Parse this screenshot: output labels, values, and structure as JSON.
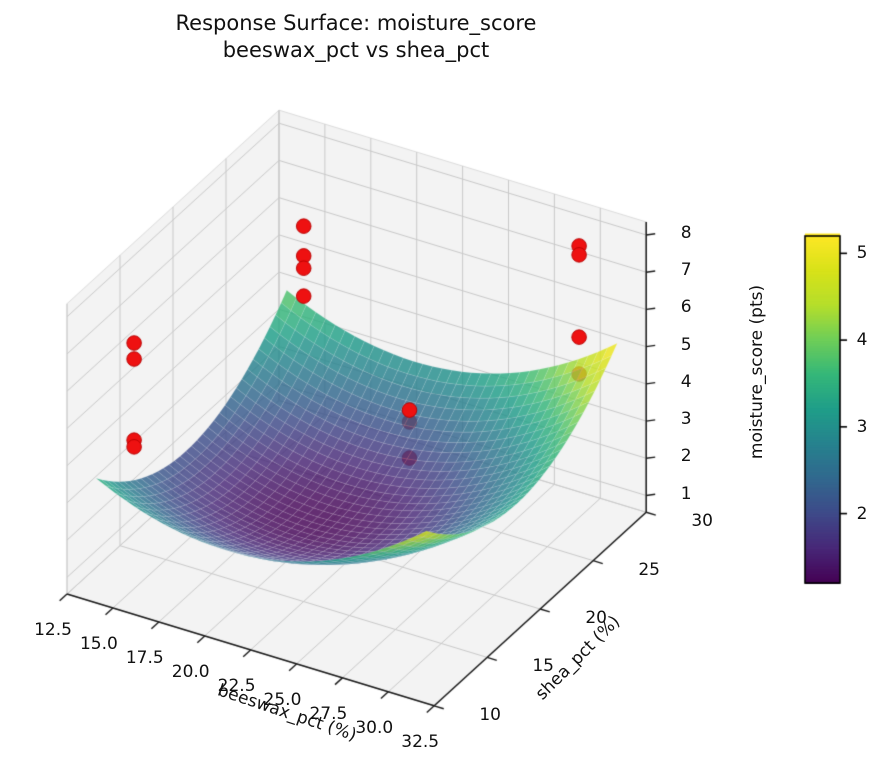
{
  "chart_data": {
    "type": "surface3d",
    "title": {
      "line1": "Response Surface: moisture_score",
      "line2": "beeswax_pct vs shea_pct"
    },
    "x": {
      "label": "beeswax_pct (%)",
      "lim": [
        12.5,
        32.5
      ],
      "ticks": [
        {
          "value": 12.5,
          "label": "12.5"
        },
        {
          "value": 15.0,
          "label": "15.0"
        },
        {
          "value": 17.5,
          "label": "17.5"
        },
        {
          "value": 20.0,
          "label": "20.0"
        },
        {
          "value": 22.5,
          "label": "22.5"
        },
        {
          "value": 25.0,
          "label": "25.0"
        },
        {
          "value": 27.5,
          "label": "27.5"
        },
        {
          "value": 30.0,
          "label": "30.0"
        },
        {
          "value": 32.5,
          "label": "32.5"
        }
      ]
    },
    "y": {
      "label": "shea_pct (%)",
      "lim": [
        10,
        30
      ],
      "ticks": [
        {
          "value": 10,
          "label": "10"
        },
        {
          "value": 15,
          "label": "15"
        },
        {
          "value": 20,
          "label": "20"
        },
        {
          "value": 25,
          "label": "25"
        },
        {
          "value": 30,
          "label": "30"
        }
      ]
    },
    "z": {
      "label": "moisture_score (pts)",
      "lim": [
        0.55,
        8.35
      ],
      "ticks": [
        {
          "value": 1,
          "label": "1"
        },
        {
          "value": 2,
          "label": "2"
        },
        {
          "value": 3,
          "label": "3"
        },
        {
          "value": 4,
          "label": "4"
        },
        {
          "value": 5,
          "label": "5"
        },
        {
          "value": 6,
          "label": "6"
        },
        {
          "value": 7,
          "label": "7"
        },
        {
          "value": 8,
          "label": "8"
        }
      ]
    },
    "colorbar": {
      "lim": [
        1.2,
        5.2
      ],
      "ticks": [
        {
          "value": 2,
          "label": "2"
        },
        {
          "value": 3,
          "label": "3"
        },
        {
          "value": 4,
          "label": "4"
        },
        {
          "value": 5,
          "label": "5"
        }
      ],
      "colormap": "viridis"
    },
    "view": {
      "elev": 30,
      "azim": -60,
      "z_box_aspect": 0.75
    },
    "surface": {
      "model": "quadratic",
      "z_min": 1.2,
      "center": {
        "beeswax_pct": 20.5,
        "shea_pct": 19.5
      },
      "coeff": {
        "beeswax_pct": 0.0178,
        "shea_pct": 0.0205
      },
      "domain": {
        "beeswax_pct": [
          13.5,
          31.5
        ],
        "shea_pct": [
          11.0,
          29.0
        ]
      },
      "grid_steps": 34,
      "alpha": 0.82
    },
    "points": [
      {
        "beeswax_pct": 15,
        "shea_pct": 28,
        "moisture_score": 6.13,
        "occluded": false
      },
      {
        "beeswax_pct": 15,
        "shea_pct": 28,
        "moisture_score": 5.33,
        "occluded": false
      },
      {
        "beeswax_pct": 15,
        "shea_pct": 28,
        "moisture_score": 5.0,
        "occluded": false
      },
      {
        "beeswax_pct": 15,
        "shea_pct": 28,
        "moisture_score": 4.25,
        "occluded": false
      },
      {
        "beeswax_pct": 15,
        "shea_pct": 12,
        "moisture_score": 7.15,
        "occluded": false
      },
      {
        "beeswax_pct": 15,
        "shea_pct": 12,
        "moisture_score": 6.72,
        "occluded": false
      },
      {
        "beeswax_pct": 15,
        "shea_pct": 12,
        "moisture_score": 4.54,
        "occluded": false
      },
      {
        "beeswax_pct": 15,
        "shea_pct": 12,
        "moisture_score": 4.36,
        "occluded": false
      },
      {
        "beeswax_pct": 30,
        "shea_pct": 28,
        "moisture_score": 7.85,
        "occluded": false
      },
      {
        "beeswax_pct": 30,
        "shea_pct": 28,
        "moisture_score": 7.61,
        "occluded": false
      },
      {
        "beeswax_pct": 30,
        "shea_pct": 28,
        "moisture_score": 5.4,
        "occluded": false
      },
      {
        "beeswax_pct": 30,
        "shea_pct": 28,
        "moisture_score": 4.41,
        "occluded": true
      },
      {
        "beeswax_pct": 30,
        "shea_pct": 12,
        "moisture_score": 7.6,
        "occluded": false
      },
      {
        "beeswax_pct": 30,
        "shea_pct": 12,
        "moisture_score": 7.28,
        "occluded": true
      },
      {
        "beeswax_pct": 30,
        "shea_pct": 12,
        "moisture_score": 6.31,
        "occluded": true
      }
    ],
    "colors": {
      "point": "#ee1111",
      "point_edge": "#b50000",
      "pane": "#f3f3f3",
      "pane_edge": "#dcdcdc",
      "grid": "#c9c9c9",
      "spine": "#1a1a1a"
    }
  }
}
